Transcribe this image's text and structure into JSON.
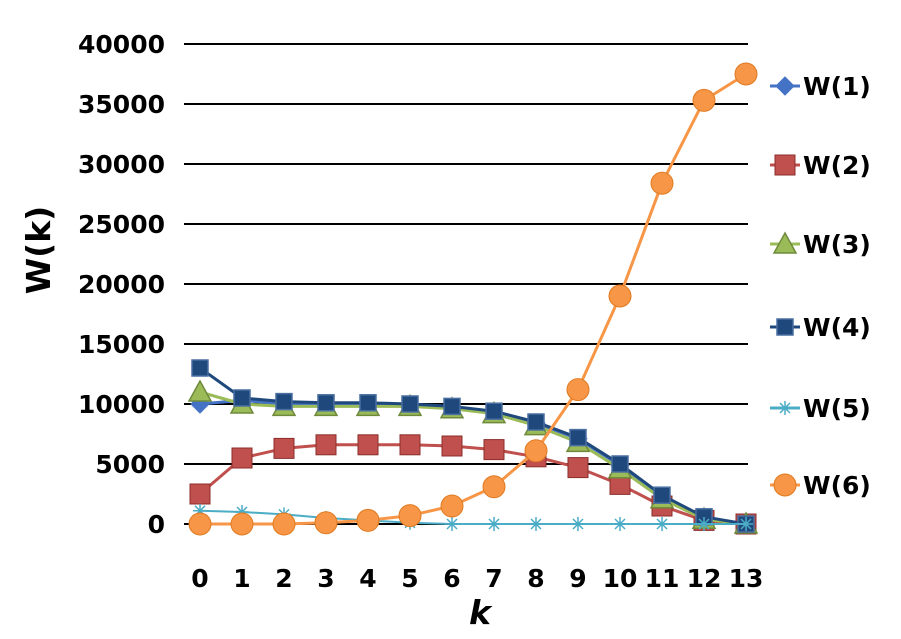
{
  "chart_data": {
    "type": "line",
    "title": "",
    "xlabel": "k",
    "ylabel": "W(k)",
    "x": [
      0,
      1,
      2,
      3,
      4,
      5,
      6,
      7,
      8,
      9,
      10,
      11,
      12,
      13
    ],
    "x_tick_labels": [
      "0",
      "1",
      "2",
      "3",
      "4",
      "5",
      "6",
      "7",
      "8",
      "9",
      "10",
      "11",
      "12",
      "13"
    ],
    "ylim": [
      0,
      40000
    ],
    "y_ticks": [
      0,
      5000,
      10000,
      15000,
      20000,
      25000,
      30000,
      35000,
      40000
    ],
    "y_tick_labels": [
      "0",
      "5000",
      "10000",
      "15000",
      "20000",
      "25000",
      "30000",
      "35000",
      "40000"
    ],
    "grid": true,
    "legend_position": "right",
    "series": [
      {
        "name": "W(1)",
        "color": "#4472C4",
        "marker": "diamond",
        "values": [
          10000,
          10300,
          10000,
          9900,
          9900,
          9800,
          9700,
          9300,
          8400,
          7100,
          4900,
          2300,
          500,
          0
        ]
      },
      {
        "name": "W(2)",
        "color": "#C0504D",
        "marker": "square",
        "values": [
          2500,
          5500,
          6300,
          6600,
          6600,
          6600,
          6500,
          6200,
          5600,
          4700,
          3300,
          1500,
          300,
          0
        ]
      },
      {
        "name": "W(3)",
        "color": "#9BBB59",
        "marker": "triangle",
        "values": [
          11000,
          10000,
          9800,
          9800,
          9800,
          9800,
          9600,
          9200,
          8200,
          6800,
          4600,
          2100,
          400,
          0
        ]
      },
      {
        "name": "W(4)",
        "color": "#1F497D",
        "marker": "square-small",
        "values": [
          13000,
          10500,
          10200,
          10100,
          10100,
          10000,
          9800,
          9400,
          8500,
          7200,
          5000,
          2400,
          600,
          0
        ]
      },
      {
        "name": "W(5)",
        "color": "#4BACC6",
        "marker": "star",
        "values": [
          1100,
          1000,
          800,
          500,
          300,
          100,
          0,
          0,
          0,
          0,
          0,
          0,
          0,
          0
        ]
      },
      {
        "name": "W(6)",
        "color": "#F79646",
        "marker": "circle",
        "values": [
          0,
          0,
          0,
          100,
          300,
          700,
          1500,
          3100,
          6100,
          11200,
          19000,
          28400,
          35300,
          37500
        ]
      }
    ]
  }
}
